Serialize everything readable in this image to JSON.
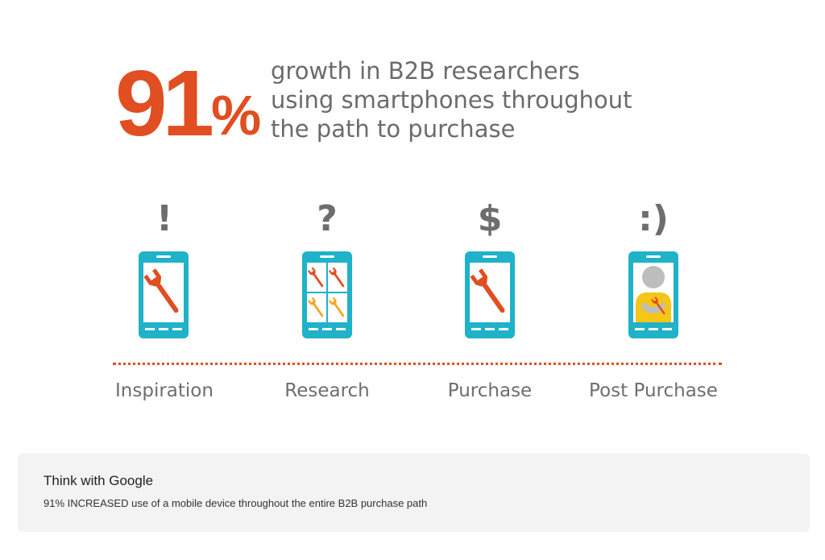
{
  "infographic": {
    "stat": {
      "number": "91",
      "percent": "%"
    },
    "headline_lines": [
      "growth in B2B researchers",
      "using smartphones throughout",
      "the path to purchase"
    ],
    "stages": [
      {
        "symbol": "!",
        "label": "Inspiration",
        "icon": "phone-wrench-icon"
      },
      {
        "symbol": "?",
        "label": "Research",
        "icon": "phone-wrench-grid-icon"
      },
      {
        "symbol": "$",
        "label": "Purchase",
        "icon": "phone-wrench-icon"
      },
      {
        "symbol": ":)",
        "label": "Post Purchase",
        "icon": "phone-person-icon"
      }
    ],
    "colors": {
      "accent": "#e04e22",
      "phone": "#1fb2c9",
      "text_gray": "#6b6b6b",
      "wrench_orange": "#e04e22",
      "wrench_yellow": "#f5a623"
    }
  },
  "caption": {
    "source": "Think with Google",
    "text": "91% INCREASED use of a mobile device throughout the entire B2B purchase path"
  }
}
